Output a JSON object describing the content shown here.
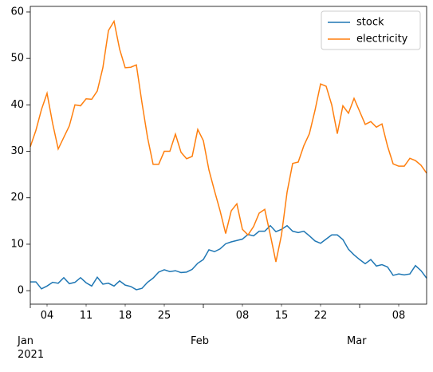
{
  "chart_data": {
    "type": "line",
    "x": [
      "2021-01-01",
      "2021-01-02",
      "2021-01-03",
      "2021-01-04",
      "2021-01-05",
      "2021-01-06",
      "2021-01-07",
      "2021-01-08",
      "2021-01-09",
      "2021-01-10",
      "2021-01-11",
      "2021-01-12",
      "2021-01-13",
      "2021-01-14",
      "2021-01-15",
      "2021-01-16",
      "2021-01-17",
      "2021-01-18",
      "2021-01-19",
      "2021-01-20",
      "2021-01-21",
      "2021-01-22",
      "2021-01-23",
      "2021-01-24",
      "2021-01-25",
      "2021-01-26",
      "2021-01-27",
      "2021-01-28",
      "2021-01-29",
      "2021-01-30",
      "2021-01-31",
      "2021-02-01",
      "2021-02-02",
      "2021-02-03",
      "2021-02-04",
      "2021-02-05",
      "2021-02-06",
      "2021-02-07",
      "2021-02-08",
      "2021-02-09",
      "2021-02-10",
      "2021-02-11",
      "2021-02-12",
      "2021-02-13",
      "2021-02-14",
      "2021-02-15",
      "2021-02-16",
      "2021-02-17",
      "2021-02-18",
      "2021-02-19",
      "2021-02-20",
      "2021-02-21",
      "2021-02-22",
      "2021-02-23",
      "2021-02-24",
      "2021-02-25",
      "2021-02-26",
      "2021-02-27",
      "2021-02-28",
      "2021-03-01",
      "2021-03-02",
      "2021-03-03",
      "2021-03-04",
      "2021-03-05",
      "2021-03-06",
      "2021-03-07",
      "2021-03-08",
      "2021-03-09",
      "2021-03-10",
      "2021-03-11",
      "2021-03-12",
      "2021-03-13"
    ],
    "series": [
      {
        "name": "stock",
        "color": "#1f77b4",
        "values": [
          1.9,
          1.9,
          0.4,
          1.0,
          1.8,
          1.6,
          2.8,
          1.5,
          1.8,
          2.8,
          1.7,
          1.0,
          2.9,
          1.4,
          1.6,
          1.0,
          2.1,
          1.2,
          0.9,
          0.2,
          0.5,
          1.8,
          2.7,
          4.0,
          4.5,
          4.1,
          4.3,
          3.9,
          4.0,
          4.6,
          5.9,
          6.7,
          8.8,
          8.4,
          9.0,
          10.1,
          10.5,
          10.8,
          11.1,
          12.1,
          11.8,
          12.8,
          12.8,
          14.0,
          12.7,
          13.2,
          14.0,
          12.8,
          12.5,
          12.8,
          11.8,
          10.7,
          10.2,
          11.1,
          12.0,
          12.0,
          11.0,
          8.9,
          7.7,
          6.7,
          5.8,
          6.7,
          5.3,
          5.6,
          5.1,
          3.3,
          3.6,
          3.4,
          3.6,
          5.4,
          4.3,
          2.7
        ]
      },
      {
        "name": "electricity",
        "color": "#ff7f0e",
        "values": [
          31,
          34.5,
          39,
          42.5,
          36,
          30.5,
          33,
          35.5,
          40,
          39.8,
          41.3,
          41.2,
          43,
          48,
          56,
          58,
          52,
          48,
          48.1,
          48.6,
          40.5,
          33,
          27.2,
          27.2,
          30,
          30,
          33.7,
          29.8,
          28.4,
          28.9,
          34.7,
          32.3,
          26,
          21.5,
          17.2,
          12.3,
          17.2,
          18.7,
          13.2,
          12,
          13.8,
          16.7,
          17.5,
          12,
          6.2,
          12,
          21.2,
          27.4,
          27.7,
          31.2,
          33.8,
          38.8,
          44.5,
          44,
          40,
          33.8,
          39.8,
          38.2,
          41.4,
          38.6,
          35.8,
          36.4,
          35.2,
          35.9,
          31.1,
          27.3,
          26.8,
          26.8,
          28.5,
          28,
          27,
          25.3
        ]
      }
    ],
    "xlim": [
      "2021-01-01",
      "2021-03-13"
    ],
    "xticks": [
      {
        "value": "2021-01-01",
        "label": "Jan\n2021"
      },
      {
        "value": "2021-02-01",
        "label": "Feb"
      },
      {
        "value": "2021-03-01",
        "label": "Mar"
      }
    ],
    "xticks_minor": [
      {
        "value": "2021-01-04",
        "label": "04"
      },
      {
        "value": "2021-01-11",
        "label": "11"
      },
      {
        "value": "2021-01-18",
        "label": "18"
      },
      {
        "value": "2021-01-25",
        "label": "25"
      },
      {
        "value": "2021-02-08",
        "label": "08"
      },
      {
        "value": "2021-02-15",
        "label": "15"
      },
      {
        "value": "2021-02-22",
        "label": "22"
      },
      {
        "value": "2021-03-08",
        "label": "08"
      }
    ],
    "ylim": [
      -2.9,
      61.2
    ],
    "yticks": [
      0,
      10,
      20,
      30,
      40,
      50,
      60
    ],
    "legend": "upper right"
  }
}
